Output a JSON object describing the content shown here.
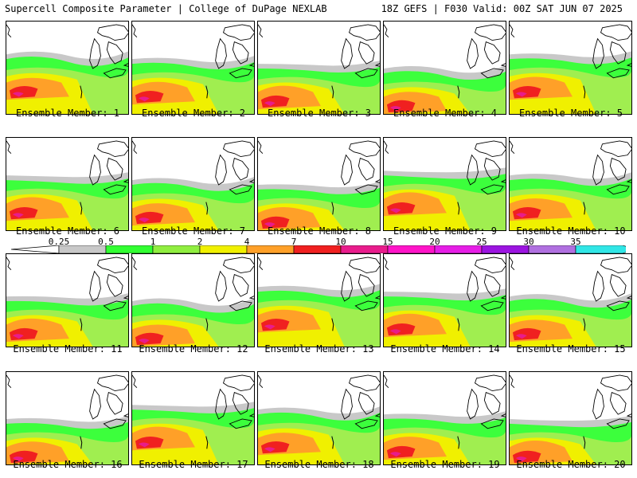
{
  "header": {
    "title_left": "Supercell Composite Parameter | College of DuPage NEXLAB",
    "title_right": "18Z GEFS | F030 Valid: 00Z SAT JUN 07 2025"
  },
  "member_label_prefix": "Ensemble Member: ",
  "members": [
    "1",
    "2",
    "3",
    "4",
    "5",
    "6",
    "7",
    "8",
    "9",
    "10",
    "11",
    "12",
    "13",
    "14",
    "15",
    "16",
    "17",
    "18",
    "19",
    "20"
  ],
  "colorbar": {
    "levels": [
      "0.25",
      "0.5",
      "1",
      "2",
      "4",
      "7",
      "10",
      "15",
      "20",
      "25",
      "30",
      "35"
    ],
    "colors": [
      "#c8c8c8",
      "#32ff32",
      "#90ee40",
      "#f0f000",
      "#ffa028",
      "#f02020",
      "#e81c8c",
      "#ff14c8",
      "#e61ee6",
      "#9b14e0",
      "#b070e0",
      "#30e6e6"
    ]
  },
  "colors": {
    "gray": "#c8c8c8",
    "green": "#3cff3c",
    "lightgreen": "#a0ee50",
    "yellow": "#f0f000",
    "orange": "#ffa028",
    "red": "#f02020",
    "magenta": "#e81c8c"
  }
}
